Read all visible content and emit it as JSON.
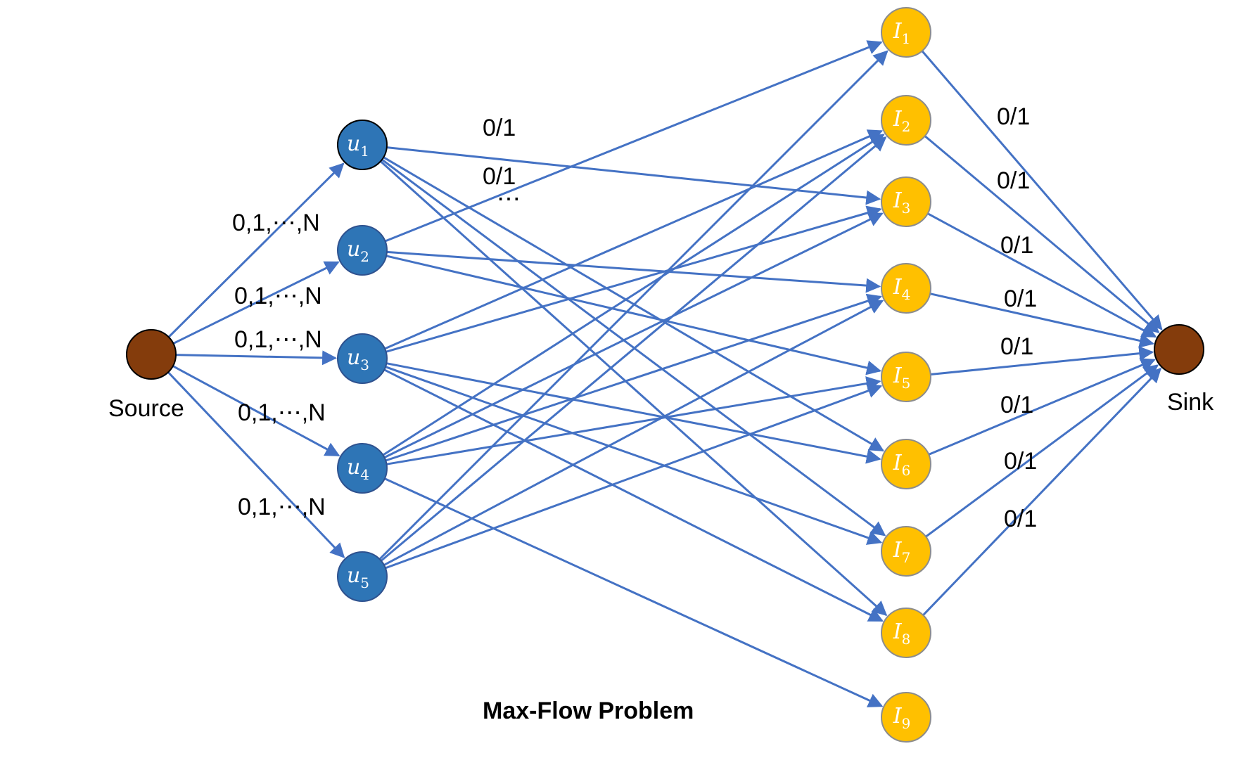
{
  "title": "Max-Flow Problem",
  "source": {
    "label": "Source",
    "color": "#843c0c"
  },
  "sink": {
    "label": "Sink",
    "color": "#843c0c"
  },
  "users": [
    {
      "id": "u1",
      "base": "u",
      "sub": "1"
    },
    {
      "id": "u2",
      "base": "u",
      "sub": "2"
    },
    {
      "id": "u3",
      "base": "u",
      "sub": "3"
    },
    {
      "id": "u4",
      "base": "u",
      "sub": "4"
    },
    {
      "id": "u5",
      "base": "u",
      "sub": "5"
    }
  ],
  "items": [
    {
      "id": "I1",
      "base": "I",
      "sub": "1"
    },
    {
      "id": "I2",
      "base": "I",
      "sub": "2"
    },
    {
      "id": "I3",
      "base": "I",
      "sub": "3"
    },
    {
      "id": "I4",
      "base": "I",
      "sub": "4"
    },
    {
      "id": "I5",
      "base": "I",
      "sub": "5"
    },
    {
      "id": "I6",
      "base": "I",
      "sub": "6"
    },
    {
      "id": "I7",
      "base": "I",
      "sub": "7"
    },
    {
      "id": "I8",
      "base": "I",
      "sub": "8"
    },
    {
      "id": "I9",
      "base": "I",
      "sub": "9"
    }
  ],
  "source_edge_labels": [
    "0,1,⋯,N",
    "0,1,⋯,N",
    "0,1,⋯,N",
    "0,1,⋯,N",
    "0,1,⋯,N"
  ],
  "user_item_edges": [
    [
      "u1",
      "I3"
    ],
    [
      "u1",
      "I6"
    ],
    [
      "u1",
      "I7"
    ],
    [
      "u1",
      "I8"
    ],
    [
      "u2",
      "I1"
    ],
    [
      "u2",
      "I4"
    ],
    [
      "u2",
      "I5"
    ],
    [
      "u3",
      "I2"
    ],
    [
      "u3",
      "I3"
    ],
    [
      "u3",
      "I6"
    ],
    [
      "u3",
      "I7"
    ],
    [
      "u3",
      "I8"
    ],
    [
      "u4",
      "I2"
    ],
    [
      "u4",
      "I3"
    ],
    [
      "u4",
      "I4"
    ],
    [
      "u4",
      "I5"
    ],
    [
      "u4",
      "I9"
    ],
    [
      "u5",
      "I1"
    ],
    [
      "u5",
      "I2"
    ],
    [
      "u5",
      "I4"
    ],
    [
      "u5",
      "I5"
    ]
  ],
  "user_item_labels": [
    "0/1",
    "0/1",
    "⋯"
  ],
  "sink_edge_labels": [
    "0/1",
    "0/1",
    "0/1",
    "0/1",
    "0/1",
    "0/1",
    "0/1",
    "0/1"
  ],
  "colors": {
    "user_fill": "#2e75b6",
    "item_fill": "#ffc000",
    "edge": "#4472c4",
    "node_stroke": "#2f528f"
  }
}
